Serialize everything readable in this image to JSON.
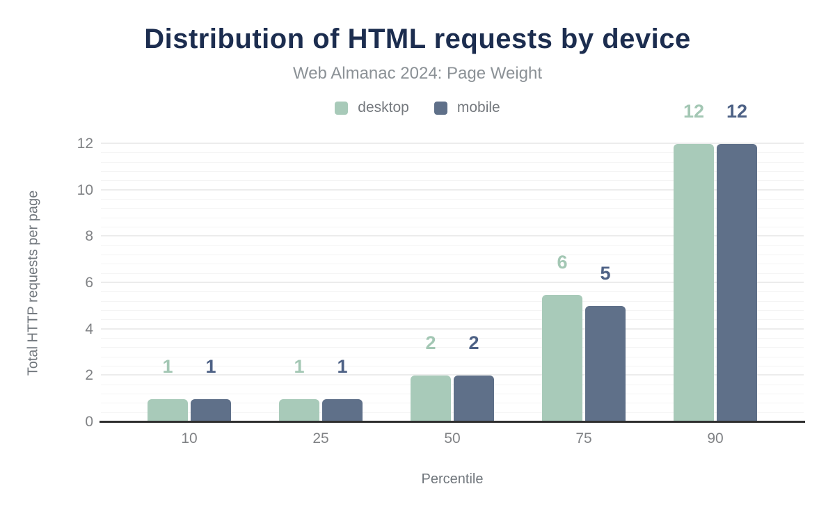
{
  "header": {
    "title_color": "#1c2d4f",
    "subtitle_color": "#8b9196"
  },
  "chart_data": {
    "type": "bar",
    "title": "Distribution of HTML requests by device",
    "subtitle": "Web Almanac 2024: Page Weight",
    "categories": [
      "10",
      "25",
      "50",
      "75",
      "90"
    ],
    "series": [
      {
        "name": "desktop",
        "color": "#a8cab9",
        "label_color": "#a3c7b4",
        "values": [
          1,
          1,
          2,
          5.5,
          12
        ],
        "data_labels": [
          "1",
          "1",
          "2",
          "6",
          "12"
        ]
      },
      {
        "name": "mobile",
        "color": "#5f7089",
        "label_color": "#4d6185",
        "values": [
          1,
          1,
          2,
          5,
          12
        ],
        "data_labels": [
          "1",
          "1",
          "2",
          "5",
          "12"
        ]
      }
    ],
    "xlabel": "Percentile",
    "ylabel": "Total HTTP requests per page",
    "ylim": [
      0,
      12
    ],
    "yticks": [
      0,
      2,
      4,
      6,
      8,
      10,
      12
    ],
    "grid": {
      "major_step": 2,
      "minor_step": 0.4,
      "major_color": "#ececec",
      "minor_color": "#f4f4f4"
    },
    "axis_line_color": "#2f2f2f",
    "tick_color": "#808285",
    "axis_title_color": "#70767c",
    "legend_position": "top"
  }
}
